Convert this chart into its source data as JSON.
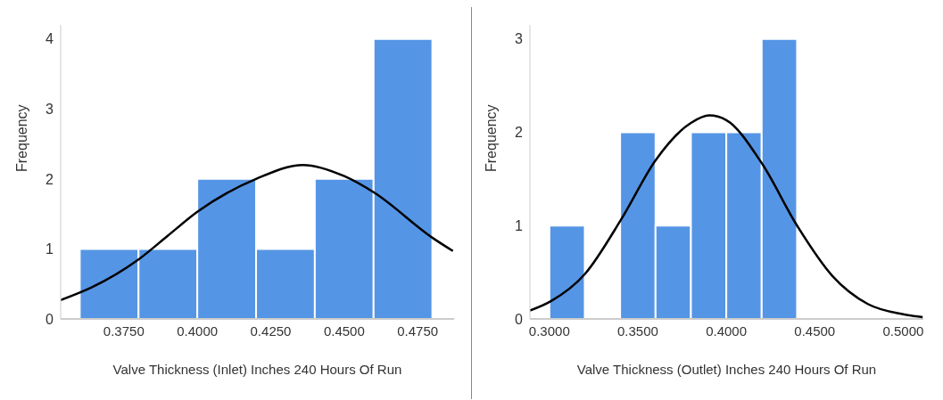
{
  "chart_data": [
    {
      "type": "histogram",
      "xlabel": "Valve Thickness (Inlet) Inches 240 Hours Of Run",
      "ylabel": "Frequency",
      "bins": [
        0.36,
        0.38,
        0.4,
        0.42,
        0.44,
        0.46,
        0.48
      ],
      "values": [
        1,
        1,
        2,
        1,
        2,
        4
      ],
      "color": "#5595e5",
      "series": [
        {
          "type": "line",
          "color": "#000000",
          "x": [
            0.3535,
            0.364,
            0.38,
            0.39,
            0.4,
            0.42,
            0.436,
            0.45,
            0.46,
            0.48,
            0.487
          ],
          "values": [
            0.27,
            0.45,
            0.85,
            1.19,
            1.53,
            2.0,
            2.2,
            2.04,
            1.81,
            1.16,
            0.97
          ]
        }
      ],
      "xlim": [
        0.3535,
        0.4874
      ],
      "xticks": [
        {
          "value": 0.375,
          "label": "0.3750"
        },
        {
          "value": 0.4,
          "label": "0.4000"
        },
        {
          "value": 0.425,
          "label": "0.4250"
        },
        {
          "value": 0.45,
          "label": "0.4500"
        },
        {
          "value": 0.475,
          "label": "0.4750"
        }
      ],
      "ylim": [
        0,
        4.2
      ],
      "yticks": [
        0,
        1,
        2,
        3,
        4
      ],
      "grid": false,
      "marker": "none"
    },
    {
      "type": "histogram",
      "xlabel": "Valve Thickness (Outlet) Inches 240 Hours Of Run",
      "ylabel": "Frequency",
      "bins": [
        0.3,
        0.32,
        0.34,
        0.36,
        0.38,
        0.4,
        0.42,
        0.44
      ],
      "values": [
        1,
        0,
        2,
        1,
        2,
        2,
        3
      ],
      "color": "#5595e5",
      "series": [
        {
          "type": "line",
          "color": "#000000",
          "x": [
            0.289,
            0.3008,
            0.32,
            0.341,
            0.36,
            0.38,
            0.3904,
            0.4,
            0.42,
            0.44,
            0.46,
            0.48,
            0.5,
            0.511
          ],
          "values": [
            0.09,
            0.19,
            0.48,
            1.08,
            1.7,
            2.1,
            2.18,
            2.13,
            1.67,
            1.0,
            0.46,
            0.16,
            0.05,
            0.02
          ]
        }
      ],
      "xlim": [
        0.289,
        0.5114
      ],
      "xticks": [
        {
          "value": 0.3,
          "label": "0.3000"
        },
        {
          "value": 0.35,
          "label": "0.3500"
        },
        {
          "value": 0.4,
          "label": "0.4000"
        },
        {
          "value": 0.45,
          "label": "0.4500"
        },
        {
          "value": 0.5,
          "label": "0.5000"
        }
      ],
      "ylim": [
        0,
        3.15
      ],
      "yticks": [
        0,
        1,
        2,
        3
      ],
      "grid": false,
      "marker": "none"
    }
  ]
}
